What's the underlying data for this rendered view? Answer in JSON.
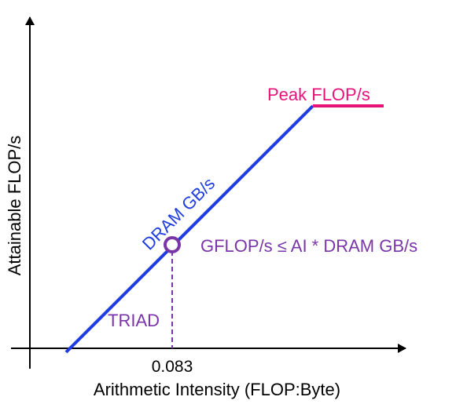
{
  "diagram": {
    "type": "roofline",
    "x_axis_label": "Arithmetic Intensity (FLOP:Byte)",
    "y_axis_label": "Attainable FLOP/s",
    "bandwidth_roof_label": "DRAM GB/s",
    "compute_roof_label": "Peak FLOP/s",
    "kernel_label": "TRIAD",
    "kernel_ai_tick": "0.083",
    "bound_equation": "GFLOP/s ≤ AI * DRAM GB/s",
    "colors": {
      "axes": "#000000",
      "bandwidth_roof": "#1f3de0",
      "compute_roof": "#e8127c",
      "kernel": "#7a35a8"
    }
  }
}
